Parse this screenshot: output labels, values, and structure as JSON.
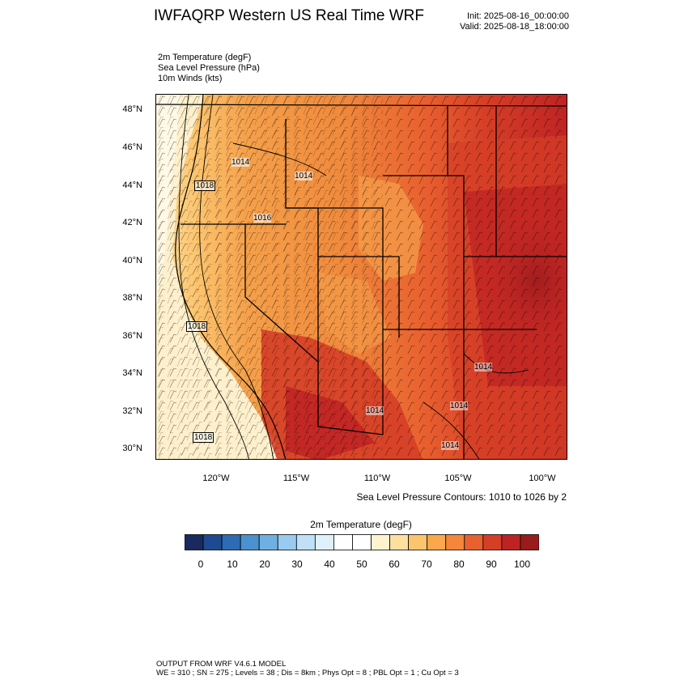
{
  "header": {
    "title": "IWFAQRP Western US Real Time WRF",
    "init": "Init: 2025-08-16_00:00:00",
    "valid": "Valid: 2025-08-18_18:00:00"
  },
  "fields": [
    "2m Temperature   (degF)",
    "Sea Level Pressure   (hPa)",
    "10m Winds   (kts)"
  ],
  "map": {
    "lat_labels": [
      "48°N",
      "46°N",
      "44°N",
      "42°N",
      "40°N",
      "38°N",
      "36°N",
      "34°N",
      "32°N",
      "30°N"
    ],
    "lon_labels": [
      "120°W",
      "115°W",
      "110°W",
      "105°W",
      "100°W"
    ],
    "isobar_labels": [
      "1014",
      "1018",
      "1014",
      "1016",
      "1018",
      "1014",
      "1014",
      "1014",
      "1014",
      "1018"
    ],
    "contour_note": "Sea Level Pressure Contours: 1010 to 1026 by 2"
  },
  "colorbar": {
    "title": "2m Temperature  (degF)",
    "colors": [
      "#1b2a5e",
      "#1f4a92",
      "#2d6cb4",
      "#4b91cf",
      "#6fb0e2",
      "#98cbef",
      "#bfe0f6",
      "#e0f0fb",
      "#ffffff",
      "#ffffff",
      "#fff3cf",
      "#fde0a0",
      "#fdc46e",
      "#fba84c",
      "#f5863a",
      "#e9602f",
      "#d63e27",
      "#be2323",
      "#991b1b"
    ],
    "tick_labels": [
      "0",
      "10",
      "20",
      "30",
      "40",
      "50",
      "60",
      "70",
      "80",
      "90",
      "100"
    ]
  },
  "footer": {
    "line1": "OUTPUT FROM WRF V4.6.1 MODEL",
    "line2": "WE = 310 ; SN = 275 ; Levels = 38 ; Dis = 8km ; Phys Opt = 8 ; PBL Opt = 1 ; Cu Opt = 3"
  }
}
